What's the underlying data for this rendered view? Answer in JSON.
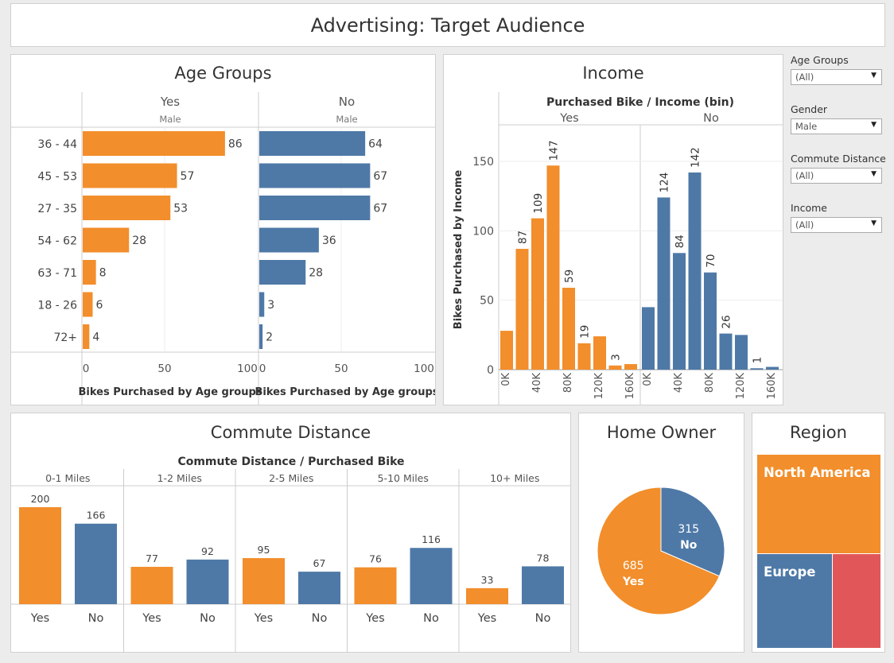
{
  "dashboard_title": "Advertising: Target Audience",
  "filters": [
    {
      "label": "Age Groups",
      "value": "(All)"
    },
    {
      "label": "Gender",
      "value": "Male"
    },
    {
      "label": "Commute Distance",
      "value": "(All)"
    },
    {
      "label": "Income",
      "value": "(All)"
    }
  ],
  "panels": {
    "age": {
      "title": "Age Groups"
    },
    "income": {
      "title": "Income"
    },
    "commute": {
      "title": "Commute Distance"
    },
    "home": {
      "title": "Home Owner"
    },
    "region": {
      "title": "Region"
    }
  },
  "colors": {
    "yes": "#f28e2b",
    "no": "#4e79a7",
    "other": "#e15759"
  },
  "chart_data": [
    {
      "id": "age",
      "type": "bar",
      "orientation": "horizontal",
      "panel_label": "Male",
      "categories": [
        "36 - 44",
        "45 - 53",
        "27 - 35",
        "54 - 62",
        "63 - 71",
        "18 - 26",
        "72+"
      ],
      "series": [
        {
          "name": "Yes",
          "values": [
            86,
            57,
            53,
            28,
            8,
            6,
            4
          ]
        },
        {
          "name": "No",
          "values": [
            64,
            67,
            67,
            36,
            28,
            3,
            2
          ]
        }
      ],
      "xlabel": "Bikes Purchased by Age groups",
      "xlim": [
        0,
        100
      ],
      "xticks": [
        0,
        50,
        100
      ]
    },
    {
      "id": "income",
      "type": "bar",
      "title": "Purchased Bike / Income (bin)",
      "ylabel": "Bikes Purchased by Income",
      "ylim": [
        0,
        170
      ],
      "yticks": [
        0,
        50,
        100,
        150
      ],
      "xticks": [
        "0K",
        "40K",
        "80K",
        "120K",
        "160K"
      ],
      "series": [
        {
          "name": "Yes",
          "values": [
            28,
            87,
            109,
            147,
            59,
            19,
            24,
            3,
            4
          ],
          "labels": [
            "",
            "87",
            "109",
            "147",
            "59",
            "19",
            "",
            "3",
            ""
          ]
        },
        {
          "name": "No",
          "values": [
            45,
            124,
            84,
            142,
            70,
            26,
            25,
            1,
            2
          ],
          "labels": [
            "",
            "124",
            "84",
            "142",
            "70",
            "26",
            "",
            "1",
            ""
          ]
        }
      ]
    },
    {
      "id": "commute",
      "type": "bar",
      "title": "Commute Distance / Purchased Bike",
      "categories": [
        "0-1 Miles",
        "1-2 Miles",
        "2-5 Miles",
        "5-10 Miles",
        "10+ Miles"
      ],
      "bar_labels": [
        "Yes",
        "No"
      ],
      "series": [
        {
          "name": "Yes",
          "values": [
            200,
            77,
            95,
            76,
            33
          ]
        },
        {
          "name": "No",
          "values": [
            166,
            92,
            67,
            116,
            78
          ]
        }
      ]
    },
    {
      "id": "home_owner",
      "type": "pie",
      "slices": [
        {
          "label": "Yes",
          "value": 685
        },
        {
          "label": "No",
          "value": 315
        }
      ]
    },
    {
      "id": "region",
      "type": "treemap",
      "cells": [
        {
          "label": "North America"
        },
        {
          "label": "Europe"
        },
        {
          "label": ""
        }
      ]
    }
  ]
}
